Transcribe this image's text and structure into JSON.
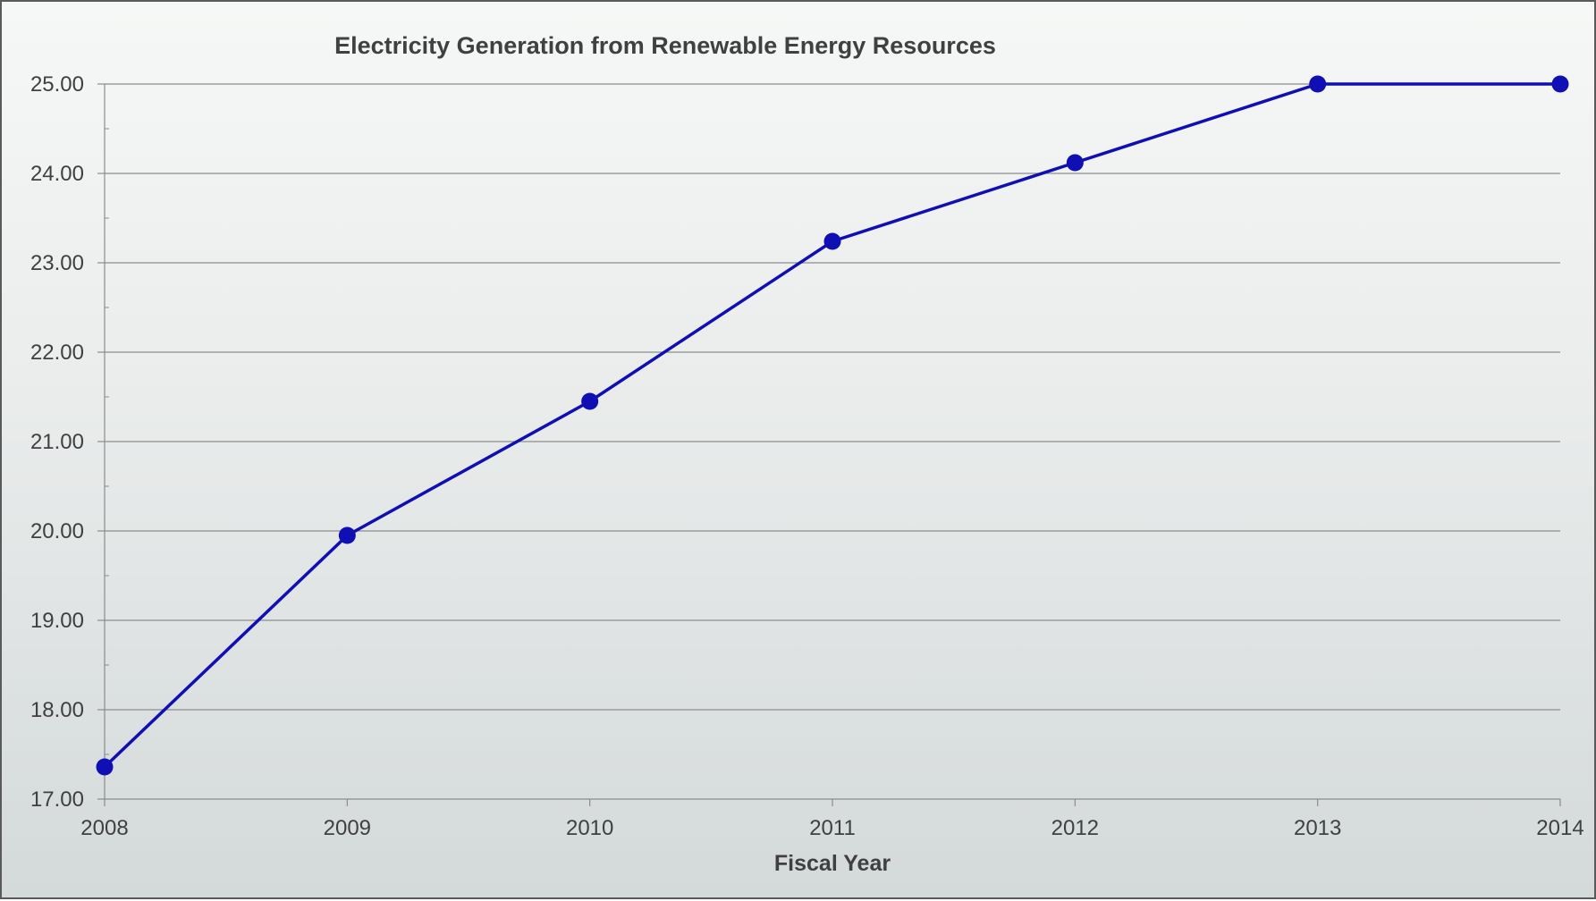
{
  "chart_data": {
    "type": "line",
    "title": "Electricity Generation from Renewable Energy Resources",
    "xlabel": "Fiscal Year",
    "ylabel": "",
    "categories": [
      "2008",
      "2009",
      "2010",
      "2011",
      "2012",
      "2013",
      "2014"
    ],
    "series": [
      {
        "values": [
          17.36,
          19.95,
          21.45,
          23.24,
          24.12,
          25.0,
          25.0
        ],
        "color": "#0f0fb4"
      }
    ],
    "ylim": [
      17,
      25
    ],
    "ytick_values": [
      17,
      18,
      19,
      20,
      21,
      22,
      23,
      24,
      25
    ],
    "ytick_labels": [
      "17.00",
      "18.00",
      "19.00",
      "20.00",
      "21.00",
      "22.00",
      "23.00",
      "24.00",
      "25.00"
    ],
    "grid": true,
    "legend": "none",
    "marker": "circle"
  }
}
